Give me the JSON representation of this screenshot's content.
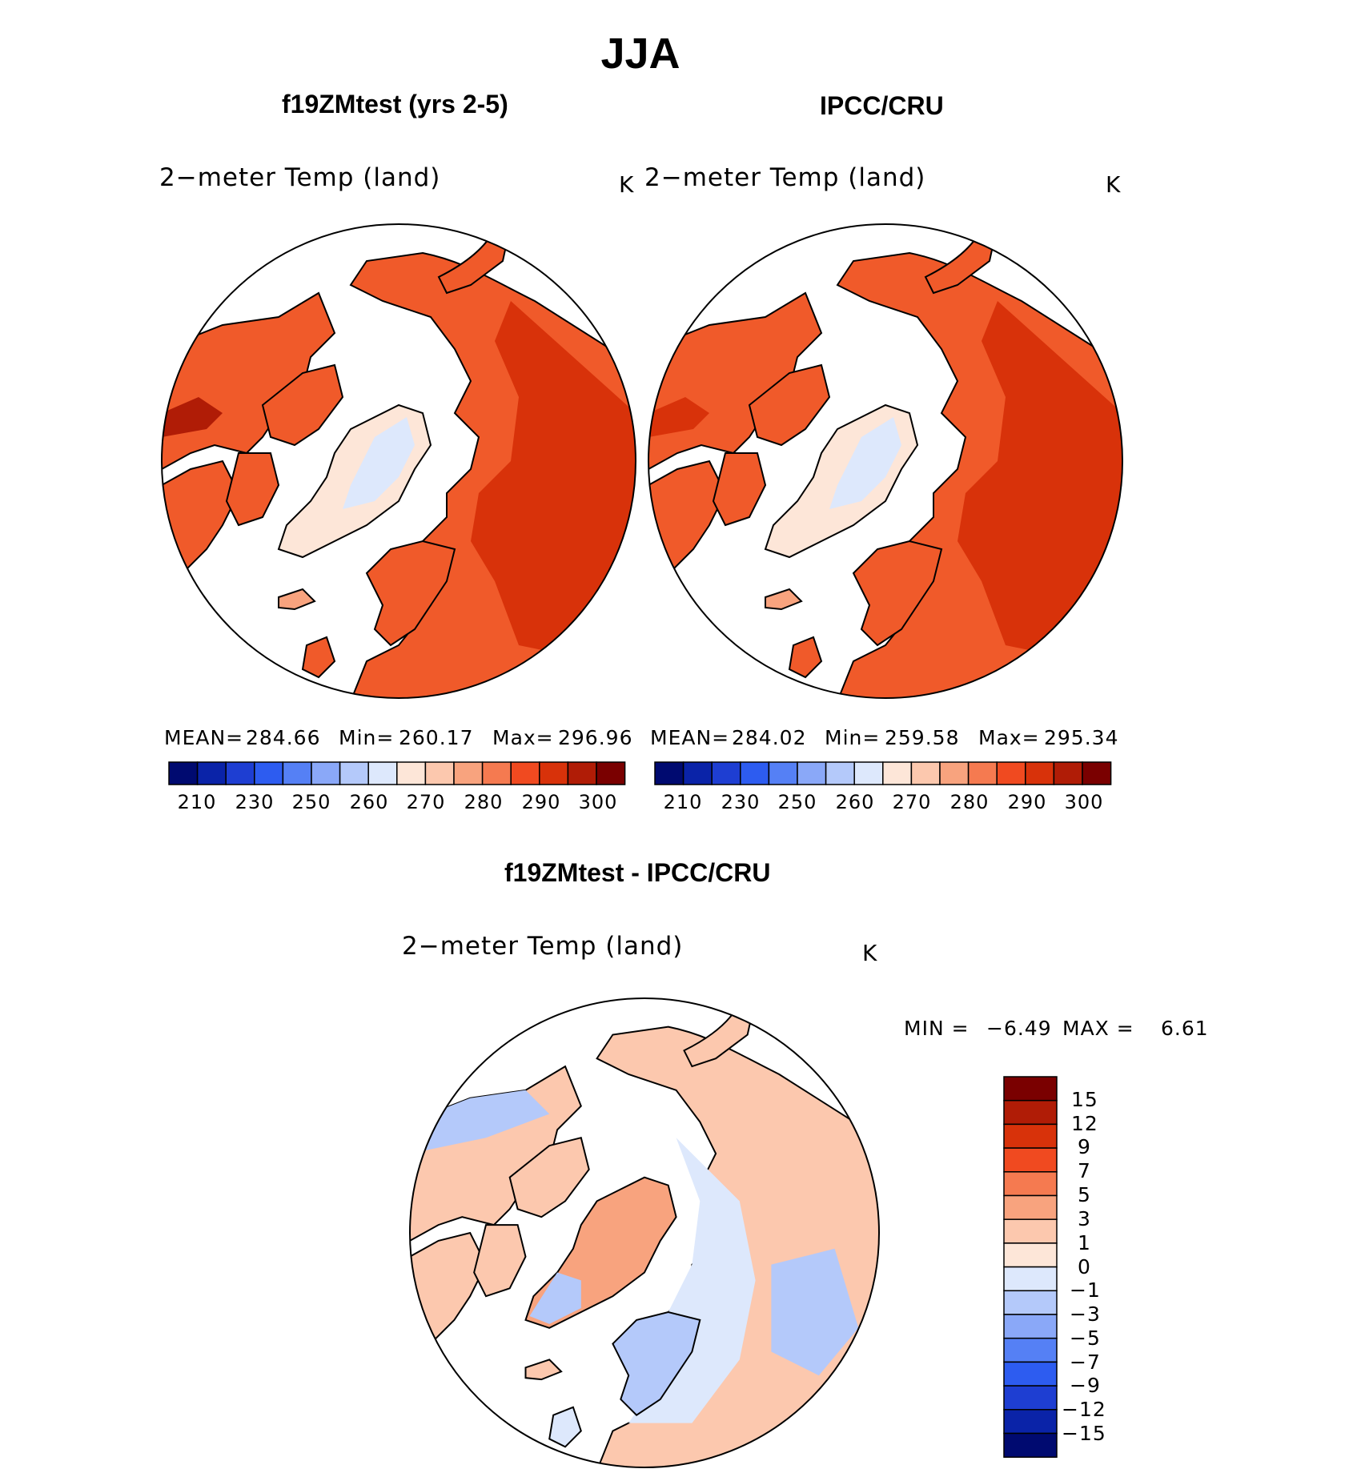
{
  "title": "JJA",
  "panels": [
    {
      "title": "f19ZMtest (yrs 2-5)",
      "variable": "2−meter Temp (land)",
      "units": "K",
      "mean_label": "MEAN=",
      "mean": "284.66",
      "min_label": "Min=",
      "min": "260.17",
      "max_label": "Max=",
      "max": "296.96",
      "colorbar_ticks": [
        "210",
        "230",
        "250",
        "260",
        "270",
        "280",
        "290",
        "300"
      ]
    },
    {
      "title": "IPCC/CRU",
      "variable": "2−meter Temp (land)",
      "units": "K",
      "mean_label": "MEAN=",
      "mean": "284.02",
      "min_label": "Min=",
      "min": "259.58",
      "max_label": "Max=",
      "max": "295.34",
      "colorbar_ticks": [
        "210",
        "230",
        "250",
        "260",
        "270",
        "280",
        "290",
        "300"
      ]
    }
  ],
  "difference": {
    "title": "f19ZMtest - IPCC/CRU",
    "variable": "2−meter Temp (land)",
    "units": "K",
    "min_label": "MIN =",
    "min": "−6.49",
    "max_label": "MAX =",
    "max": "6.61",
    "colorbar_labels": [
      "15",
      "12",
      "9",
      "7",
      "5",
      "3",
      "1",
      "0",
      "−1",
      "−3",
      "−5",
      "−7",
      "−9",
      "−12",
      "−15"
    ]
  },
  "colors": {
    "abs_scale": [
      "#000a70",
      "#0a23a8",
      "#1e3ed2",
      "#2d5cf0",
      "#5580f5",
      "#8aa8f8",
      "#b4c9fa",
      "#dde8fc",
      "#fde6d8",
      "#fcc8ae",
      "#f8a37e",
      "#f57a50",
      "#f04a20",
      "#d8320a",
      "#b01c06",
      "#7a0000"
    ],
    "diff_scale": [
      "#7a0000",
      "#b01c06",
      "#d8320a",
      "#f04a20",
      "#f57a50",
      "#f8a37e",
      "#fcc8ae",
      "#fde6d8",
      "#dde8fc",
      "#b4c9fa",
      "#8aa8f8",
      "#5580f5",
      "#2d5cf0",
      "#1e3ed2",
      "#0a23a8",
      "#000a70"
    ],
    "land_warm": "#f05a2a",
    "land_hot": "#d8320a",
    "land_mid": "#f8a37e",
    "land_cold": "#fde6d8",
    "ice": "#dde8fc",
    "diff_warm": "#fcc8ae",
    "diff_cool": "#dde8fc",
    "diff_blue": "#b4c9fa"
  }
}
